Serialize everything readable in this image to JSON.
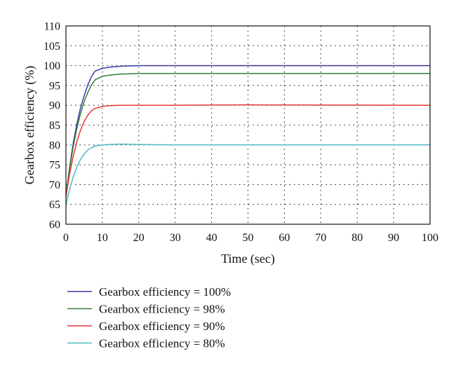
{
  "chart_data": {
    "type": "line",
    "title": "",
    "xlabel": "Time (sec)",
    "ylabel": "Gearbox efficiency (%)",
    "xlim": [
      0,
      100
    ],
    "ylim": [
      60,
      110
    ],
    "xticks": [
      0,
      10,
      20,
      30,
      40,
      50,
      60,
      70,
      80,
      90,
      100
    ],
    "yticks": [
      60,
      65,
      70,
      75,
      80,
      85,
      90,
      95,
      100,
      105,
      110
    ],
    "xtick_labels": [
      "0",
      "10",
      "20",
      "30",
      "40",
      "50",
      "60",
      "70",
      "80",
      "90",
      "100"
    ],
    "ytick_labels": [
      "60",
      "65",
      "70",
      "75",
      "80",
      "85",
      "90",
      "95",
      "100",
      "105",
      "110"
    ],
    "grid": true,
    "legend_position": "below",
    "series": [
      {
        "name": "Gearbox efficiency = 100%",
        "color": "#3a3aa8",
        "x": [
          0,
          1,
          2,
          3,
          4,
          5,
          6,
          7,
          8,
          10,
          12,
          15,
          20,
          30,
          50,
          100
        ],
        "y": [
          67,
          74.4,
          80.4,
          85.3,
          89.3,
          92.4,
          95.1,
          97.2,
          98.6,
          99.3,
          99.6,
          99.85,
          100,
          100,
          100,
          100
        ]
      },
      {
        "name": "Gearbox efficiency = 98%",
        "color": "#2e7d32",
        "x": [
          0,
          1,
          2,
          3,
          4,
          5,
          6,
          7,
          8,
          10,
          12,
          15,
          20,
          30,
          50,
          100
        ],
        "y": [
          67,
          74,
          79.6,
          84.2,
          87.9,
          90.9,
          93.2,
          95.1,
          96.4,
          97.3,
          97.6,
          97.85,
          98,
          98,
          98,
          98
        ]
      },
      {
        "name": "Gearbox efficiency = 90%",
        "color": "#e53935",
        "x": [
          0,
          1,
          2,
          3,
          4,
          5,
          6,
          7,
          8,
          10,
          12,
          15,
          20,
          30,
          50,
          100
        ],
        "y": [
          67,
          72.6,
          77.1,
          80.8,
          83.7,
          85.9,
          87.5,
          88.6,
          89.2,
          89.7,
          89.9,
          90,
          90,
          90,
          90.1,
          90
        ]
      },
      {
        "name": "Gearbox efficiency = 80%",
        "color": "#4fb8c4",
        "x": [
          0,
          1,
          2,
          3,
          4,
          5,
          6,
          7,
          8,
          10,
          12,
          15,
          20,
          30,
          50,
          100
        ],
        "y": [
          65,
          68.8,
          71.9,
          74.4,
          76.3,
          77.7,
          78.7,
          79.3,
          79.7,
          80,
          80.1,
          80.2,
          80.1,
          80,
          80,
          80
        ]
      }
    ]
  }
}
